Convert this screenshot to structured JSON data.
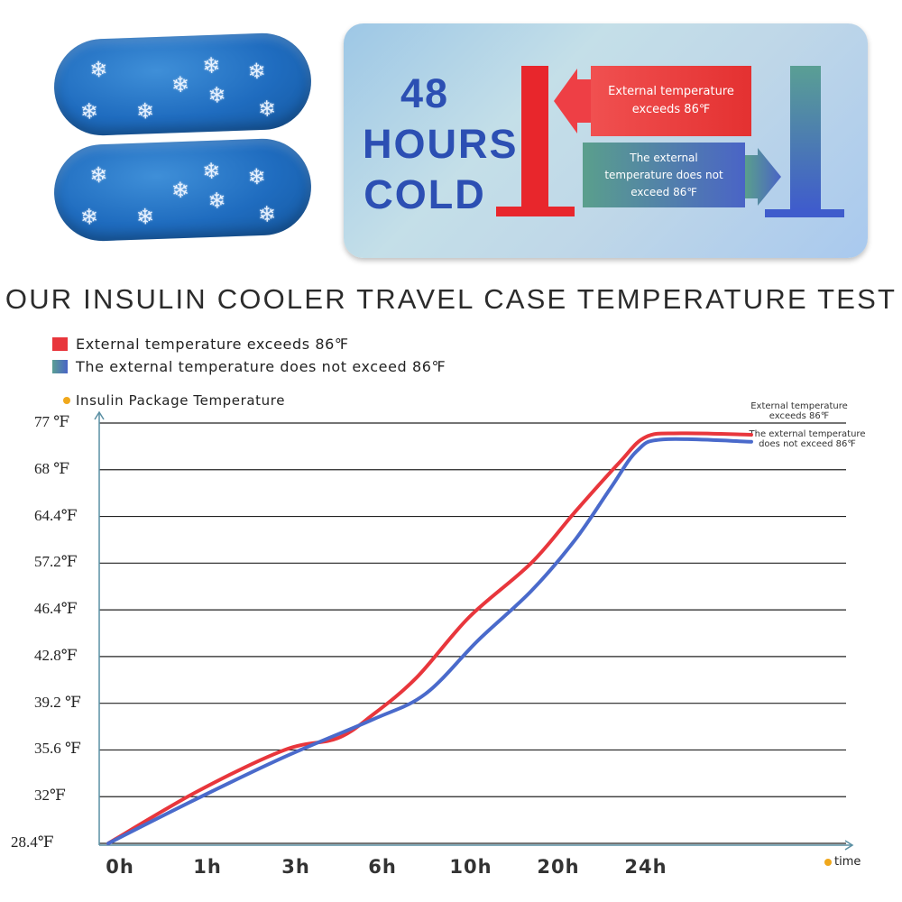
{
  "banner": {
    "hours_lines": [
      "48",
      "HOURS",
      "COLD"
    ],
    "red_label": "External temperature exceeds 86℉",
    "blue_label": "The external temperature does not exceed 86℉",
    "snowflake_icon": "❄"
  },
  "colors": {
    "red": "#e8363c",
    "blue": "#4a6acb",
    "axis": "#5a8fa3",
    "dot": "#f0a81c",
    "hours_text": "#2c4fb3"
  },
  "chart_data": {
    "type": "line",
    "title": "OUR INSULIN COOLER TRAVEL CASE TEMPERATURE TEST",
    "ylabel": "Insulin Package Temperature",
    "xlabel": "time",
    "y_ticks": [
      "28.4℉",
      "32℉",
      "35.6 ℉",
      "39.2 ℉",
      "42.8℉",
      "46.4℉",
      "57.2℉",
      "64.4℉",
      "68 ℉",
      "77 ℉"
    ],
    "x_ticks": [
      "0h",
      "1h",
      "3h",
      "6h",
      "10h",
      "20h",
      "24h"
    ],
    "legend": [
      "External temperature exceeds 86℉",
      "The external temperature does not exceed 86℉"
    ],
    "series": [
      {
        "name": "External temperature exceeds 86℉",
        "end_label": "External temperature exceeds 86℉",
        "points": [
          [
            0,
            0
          ],
          [
            1,
            1.1
          ],
          [
            2,
            2.0
          ],
          [
            2.6,
            2.25
          ],
          [
            3,
            2.75
          ],
          [
            3.5,
            3.55
          ],
          [
            4.1,
            4.85
          ],
          [
            4.8,
            6.0
          ],
          [
            5.3,
            7.1
          ],
          [
            5.8,
            8.15
          ],
          [
            6.1,
            8.7
          ],
          [
            6.5,
            8.78
          ],
          [
            7.3,
            8.75
          ]
        ]
      },
      {
        "name": "The external temperature does not exceed 86℉",
        "end_label": "The external temperature does not exceed 86℉",
        "points": [
          [
            0,
            0
          ],
          [
            1,
            0.95
          ],
          [
            2,
            1.85
          ],
          [
            3,
            2.65
          ],
          [
            3.6,
            3.2
          ],
          [
            4.2,
            4.35
          ],
          [
            4.8,
            5.4
          ],
          [
            5.3,
            6.5
          ],
          [
            5.7,
            7.6
          ],
          [
            6.0,
            8.4
          ],
          [
            6.3,
            8.65
          ],
          [
            7.3,
            8.6
          ]
        ]
      }
    ],
    "y_index_range": [
      0,
      9
    ],
    "x_index_range": [
      0,
      7.5
    ],
    "grid": true
  }
}
